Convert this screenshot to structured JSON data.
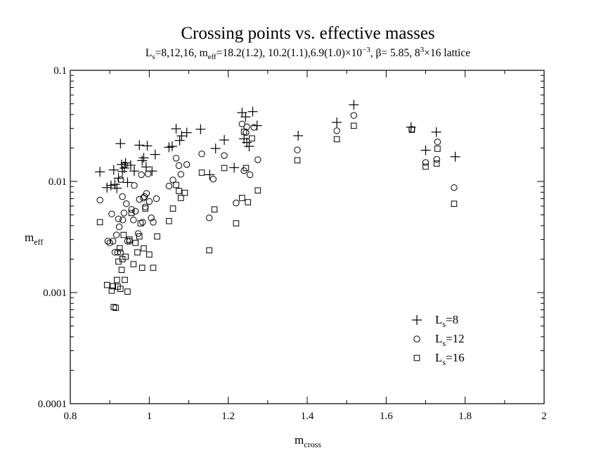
{
  "chart_data": {
    "type": "scatter",
    "title": "Crossing points vs. effective masses",
    "subtitle": {
      "p1": "L",
      "p1_sub": "s",
      "p2": "=8,12,16, m",
      "p2_sub": "eff",
      "p3": "=18.2(1.2), 10.2(1.1),6.9(1.0)×10",
      "p3_sup": "−3",
      "p4": ", β= 5.85, 8",
      "p4_sup": "3",
      "p5": "×16 lattice"
    },
    "xlabel": {
      "main": "m",
      "sub": "cross"
    },
    "ylabel": {
      "main": "m",
      "sub": "eff"
    },
    "xlim": [
      0.8,
      2.0
    ],
    "ylim": [
      0.0001,
      0.1
    ],
    "yscale": "log",
    "x_ticks": [
      0.8,
      1.0,
      1.2,
      1.4,
      1.6,
      1.8,
      2.0
    ],
    "x_tick_labels": [
      "0.8",
      "1",
      "1.2",
      "1.4",
      "1.6",
      "1.8",
      "2"
    ],
    "y_ticks": [
      0.0001,
      0.001,
      0.01,
      0.1
    ],
    "y_tick_labels": [
      "0.0001",
      "0.001",
      "0.01",
      "0.1"
    ],
    "legend_position": "bottom-right",
    "series": [
      {
        "name": "Ls=8",
        "label_main": "L",
        "label_sub": "s",
        "label_rest": "=8",
        "marker": "plus",
        "points": [
          [
            0.875,
            0.0122
          ],
          [
            0.893,
            0.0088
          ],
          [
            0.903,
            0.0092
          ],
          [
            0.91,
            0.0127
          ],
          [
            0.913,
            0.0094
          ],
          [
            0.918,
            0.0087
          ],
          [
            0.922,
            0.0107
          ],
          [
            0.927,
            0.0219
          ],
          [
            0.93,
            0.0142
          ],
          [
            0.932,
            0.0123
          ],
          [
            0.937,
            0.0132
          ],
          [
            0.94,
            0.0147
          ],
          [
            0.945,
            0.0098
          ],
          [
            0.953,
            0.014
          ],
          [
            0.962,
            0.0124
          ],
          [
            0.975,
            0.0212
          ],
          [
            0.982,
            0.0154
          ],
          [
            0.986,
            0.0163
          ],
          [
            0.992,
            0.0135
          ],
          [
            0.995,
            0.0209
          ],
          [
            1.007,
            0.0124
          ],
          [
            1.015,
            0.0175
          ],
          [
            1.05,
            0.0203
          ],
          [
            1.058,
            0.0207
          ],
          [
            1.068,
            0.0298
          ],
          [
            1.077,
            0.0234
          ],
          [
            1.082,
            0.0257
          ],
          [
            1.095,
            0.0275
          ],
          [
            1.13,
            0.0295
          ],
          [
            1.153,
            0.0115
          ],
          [
            1.168,
            0.0198
          ],
          [
            1.19,
            0.0236
          ],
          [
            1.215,
            0.0133
          ],
          [
            1.235,
            0.0416
          ],
          [
            1.24,
            0.0242
          ],
          [
            1.244,
            0.0381
          ],
          [
            1.247,
            0.0224
          ],
          [
            1.253,
            0.0207
          ],
          [
            1.262,
            0.0425
          ],
          [
            1.273,
            0.0318
          ],
          [
            1.377,
            0.0258
          ],
          [
            1.475,
            0.034
          ],
          [
            1.518,
            0.049
          ],
          [
            1.663,
            0.0308
          ],
          [
            1.7,
            0.0191
          ],
          [
            1.727,
            0.0278
          ],
          [
            1.775,
            0.0167
          ]
        ]
      },
      {
        "name": "Ls=12",
        "label_main": "L",
        "label_sub": "s",
        "label_rest": "=12",
        "marker": "circle",
        "points": [
          [
            0.875,
            0.0068
          ],
          [
            0.895,
            0.0029
          ],
          [
            0.9,
            0.0028
          ],
          [
            0.905,
            0.0051
          ],
          [
            0.908,
            0.0029
          ],
          [
            0.913,
            0.0023
          ],
          [
            0.917,
            0.0033
          ],
          [
            0.92,
            0.0023
          ],
          [
            0.922,
            0.0046
          ],
          [
            0.924,
            0.0039
          ],
          [
            0.927,
            0.0023
          ],
          [
            0.928,
            0.0104
          ],
          [
            0.932,
            0.0073
          ],
          [
            0.933,
            0.0045
          ],
          [
            0.936,
            0.0052
          ],
          [
            0.938,
            0.0141
          ],
          [
            0.942,
            0.0063
          ],
          [
            0.945,
            0.0029
          ],
          [
            0.95,
            0.0029
          ],
          [
            0.955,
            0.0056
          ],
          [
            0.96,
            0.0045
          ],
          [
            0.962,
            0.0092
          ],
          [
            0.965,
            0.0054
          ],
          [
            0.972,
            0.0034
          ],
          [
            0.975,
            0.0069
          ],
          [
            0.98,
            0.0115
          ],
          [
            0.983,
            0.0043
          ],
          [
            0.985,
            0.0071
          ],
          [
            0.988,
            0.0073
          ],
          [
            0.99,
            0.0059
          ],
          [
            0.993,
            0.0078
          ],
          [
            0.997,
            0.0117
          ],
          [
            1.0,
            0.0066
          ],
          [
            1.005,
            0.0047
          ],
          [
            1.01,
            0.0043
          ],
          [
            1.018,
            0.007
          ],
          [
            1.05,
            0.0091
          ],
          [
            1.06,
            0.0103
          ],
          [
            1.068,
            0.0162
          ],
          [
            1.075,
            0.0139
          ],
          [
            1.08,
            0.0116
          ],
          [
            1.095,
            0.0142
          ],
          [
            1.133,
            0.0177
          ],
          [
            1.152,
            0.0047
          ],
          [
            1.162,
            0.0105
          ],
          [
            1.19,
            0.0171
          ],
          [
            1.22,
            0.0064
          ],
          [
            1.235,
            0.0329
          ],
          [
            1.24,
            0.0125
          ],
          [
            1.245,
            0.0275
          ],
          [
            1.247,
            0.031
          ],
          [
            1.255,
            0.0115
          ],
          [
            1.265,
            0.0307
          ],
          [
            1.275,
            0.0157
          ],
          [
            1.375,
            0.0192
          ],
          [
            1.475,
            0.0286
          ],
          [
            1.518,
            0.0393
          ],
          [
            1.665,
            0.0294
          ],
          [
            1.7,
            0.0148
          ],
          [
            1.728,
            0.0158
          ],
          [
            1.73,
            0.0227
          ],
          [
            1.772,
            0.0088
          ]
        ]
      },
      {
        "name": "Ls=16",
        "label_main": "L",
        "label_sub": "s",
        "label_rest": "=16",
        "marker": "square",
        "points": [
          [
            0.875,
            0.0043
          ],
          [
            0.893,
            0.00117
          ],
          [
            0.905,
            0.00104
          ],
          [
            0.908,
            0.00114
          ],
          [
            0.91,
            0.00074
          ],
          [
            0.915,
            0.00073
          ],
          [
            0.918,
            0.0013
          ],
          [
            0.92,
            0.00113
          ],
          [
            0.922,
            0.0019
          ],
          [
            0.925,
            0.0025
          ],
          [
            0.927,
            0.00108
          ],
          [
            0.93,
            0.0016
          ],
          [
            0.932,
            0.002
          ],
          [
            0.935,
            0.0033
          ],
          [
            0.938,
            0.0013
          ],
          [
            0.94,
            0.0021
          ],
          [
            0.945,
            0.00102
          ],
          [
            0.95,
            0.003
          ],
          [
            0.955,
            0.0052
          ],
          [
            0.96,
            0.0018
          ],
          [
            0.965,
            0.0028
          ],
          [
            0.97,
            0.0023
          ],
          [
            0.975,
            0.0032
          ],
          [
            0.978,
            0.0042
          ],
          [
            0.982,
            0.00167
          ],
          [
            0.986,
            0.0025
          ],
          [
            0.99,
            0.0057
          ],
          [
            1.0,
            0.0022
          ],
          [
            1.01,
            0.00167
          ],
          [
            1.02,
            0.0032
          ],
          [
            1.05,
            0.0044
          ],
          [
            1.06,
            0.0057
          ],
          [
            1.068,
            0.0093
          ],
          [
            1.075,
            0.0082
          ],
          [
            1.08,
            0.0071
          ],
          [
            1.09,
            0.0079
          ],
          [
            1.133,
            0.012
          ],
          [
            1.152,
            0.0024
          ],
          [
            1.165,
            0.0056
          ],
          [
            1.19,
            0.0132
          ],
          [
            1.22,
            0.0042
          ],
          [
            1.235,
            0.0071
          ],
          [
            1.24,
            0.028
          ],
          [
            1.245,
            0.0132
          ],
          [
            1.25,
            0.0065
          ],
          [
            1.26,
            0.0244
          ],
          [
            1.275,
            0.0083
          ],
          [
            1.375,
            0.0155
          ],
          [
            1.475,
            0.024
          ],
          [
            1.518,
            0.0317
          ],
          [
            1.665,
            0.0292
          ],
          [
            1.7,
            0.0136
          ],
          [
            1.728,
            0.0145
          ],
          [
            1.73,
            0.0197
          ],
          [
            1.772,
            0.0063
          ]
        ]
      }
    ]
  }
}
